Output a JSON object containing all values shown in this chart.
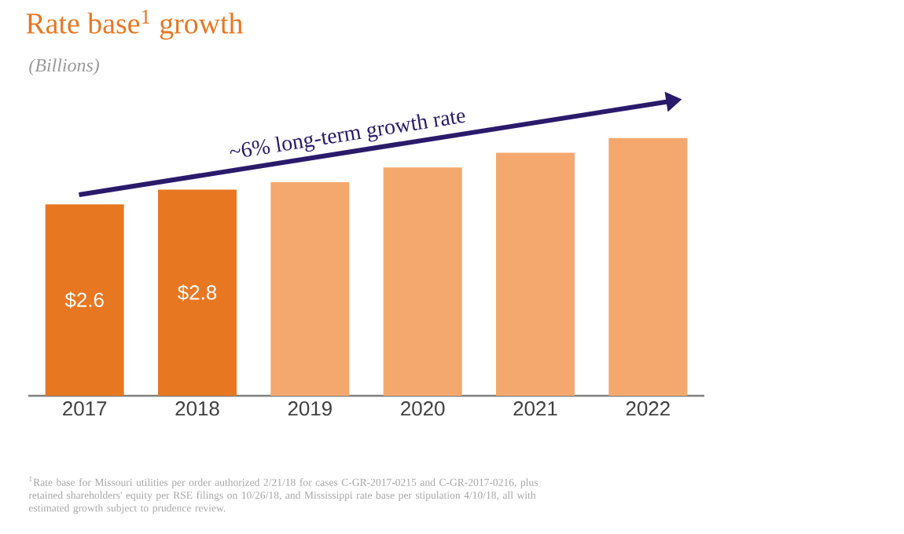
{
  "chart_data": {
    "type": "bar",
    "title": "Rate base$^{1}$ growth",
    "subtitle": "*(Billions)*",
    "categories": [
      "2017",
      "2018",
      "2019",
      "2020",
      "2021",
      "2022"
    ],
    "series": [
      {
        "color": "#e87722",
        "values": [
          2.6,
          2.8,
          null,
          null,
          null,
          null
        ],
        "value_labels": [
          "$2.6",
          "$2.8",
          null,
          null,
          null,
          null
        ]
      },
      {
        "color": "#f4a86e",
        "values": [
          null,
          null,
          2.9,
          3.1,
          3.3,
          3.5
        ]
      }
    ],
    "annotations": [
      "~6% long-term growth rate",
      "$^{1}$Rate base for Missouri utilities per order authorized 2/21/18 for cases C-GR-2017-0215 and C-GR-2017-0216, plus retained shareholders' equity per RSE filings on 10/26/18, and Mississippi rate base per stipulation 4/10/18, all with estimated growth subject to prudence review."
    ]
  }
}
